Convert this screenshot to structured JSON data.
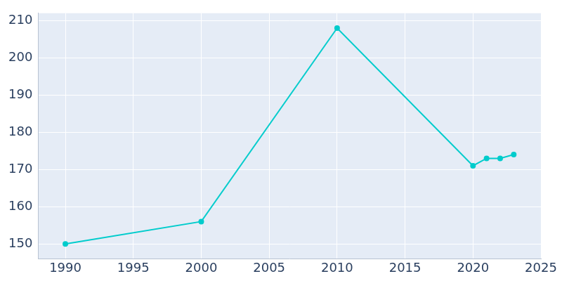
{
  "chart_data": {
    "type": "line",
    "x": [
      1990,
      2000,
      2010,
      2020,
      2021,
      2022,
      2023
    ],
    "values": [
      150,
      156,
      208,
      171,
      173,
      173,
      174
    ],
    "color": "#00cccc",
    "marker": "circle",
    "xlim": [
      1988,
      2025
    ],
    "xticks": [
      1990,
      1995,
      2000,
      2005,
      2010,
      2015,
      2020,
      2025
    ],
    "ylim": [
      146,
      212
    ],
    "yticks": [
      150,
      160,
      170,
      180,
      190,
      200,
      210
    ],
    "grid": true
  }
}
